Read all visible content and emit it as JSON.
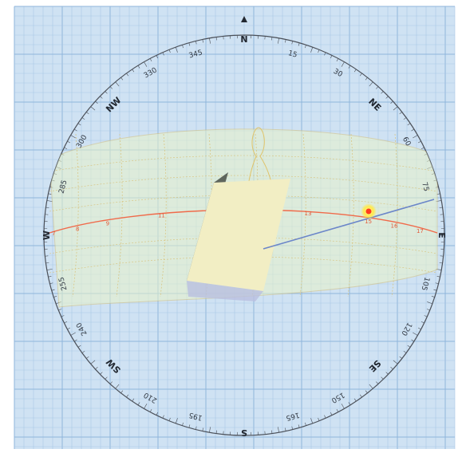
{
  "colors": {
    "grid_background": "#cfe2f3",
    "grid_line": "#a9c8e6",
    "grid_line_major": "#8fb5db",
    "horizon": "#4a4f58",
    "sun_path_band": "#e9f3c8",
    "sun_path_outline": "#d8c27a",
    "analemma": "#e0c46a",
    "current_day_path": "#f06a4a",
    "sun": "#ff3b1f",
    "sun_glow": "#ffe94d",
    "sun_ray": "#6b86c9",
    "building_top": "#f2eec4",
    "building_side": "#5f665d",
    "building_front": "#e9e6b9"
  },
  "compass": {
    "cardinals": [
      {
        "id": "north",
        "label": "N",
        "az": 0
      },
      {
        "id": "east",
        "label": "E",
        "az": 90
      },
      {
        "id": "south",
        "label": "S",
        "az": 180
      },
      {
        "id": "west",
        "label": "W",
        "az": 270
      }
    ],
    "intercardinals": [
      {
        "id": "ne",
        "label": "NE",
        "az": 45
      },
      {
        "id": "se",
        "label": "SE",
        "az": 135
      },
      {
        "id": "sw",
        "label": "SW",
        "az": 225
      },
      {
        "id": "nw",
        "label": "NW",
        "az": 315
      }
    ],
    "degree_labels": [
      {
        "label": "15",
        "az": 15
      },
      {
        "label": "30",
        "az": 30
      },
      {
        "label": "60",
        "az": 60
      },
      {
        "label": "75",
        "az": 75
      },
      {
        "label": "105",
        "az": 105
      },
      {
        "label": "120",
        "az": 120
      },
      {
        "label": "150",
        "az": 150
      },
      {
        "label": "165",
        "az": 165
      },
      {
        "label": "195",
        "az": 195
      },
      {
        "label": "210",
        "az": 210
      },
      {
        "label": "240",
        "az": 240
      },
      {
        "label": "255",
        "az": 255
      },
      {
        "label": "285",
        "az": 285
      },
      {
        "label": "300",
        "az": 300
      },
      {
        "label": "330",
        "az": 330
      },
      {
        "label": "345",
        "az": 345
      }
    ]
  },
  "hour_labels": [
    {
      "label": "7",
      "az": 272
    },
    {
      "label": "8",
      "az": 283
    },
    {
      "label": "9",
      "az": 297
    },
    {
      "label": "11",
      "az": 322
    },
    {
      "label": "12",
      "az": 355
    },
    {
      "label": "13",
      "az": 30
    },
    {
      "label": "15",
      "az": 58
    },
    {
      "label": "16",
      "az": 70
    },
    {
      "label": "17",
      "az": 82
    }
  ],
  "sun_position": {
    "az": 64,
    "label": ""
  }
}
